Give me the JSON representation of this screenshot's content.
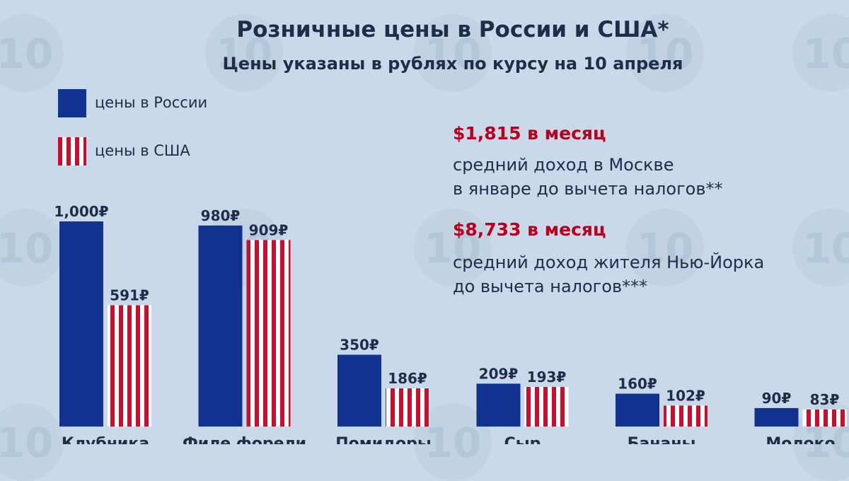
{
  "header": {
    "title": "Розничные цены в России и США*",
    "subtitle": "Цены указаны в рублях по курсу на 10 апреля"
  },
  "legend": {
    "russia": "цены в России",
    "usa": "цены в США"
  },
  "info": {
    "moscow_amount": "$1,815 в месяц",
    "moscow_line1": "средний доход в Москве",
    "moscow_line2": "в январе до вычета налогов**",
    "ny_amount": "$8,733 в месяц",
    "ny_line1": "средний доход жителя Нью-Йорка",
    "ny_line2": "до вычета налогов***"
  },
  "colors": {
    "background": "#c9d9e9",
    "russia": "#11338f",
    "usa_stripe": "#c8102e",
    "text": "#1f2c4a",
    "accent": "#b8001e"
  },
  "chart_data": {
    "type": "bar",
    "title": "Розничные цены в России и США*",
    "subtitle": "Цены указаны в рублях по курсу на 10 апреля",
    "categories": [
      "Клубника",
      "Филе форели",
      "Помидоры",
      "Сыр",
      "Бананы",
      "Молоко"
    ],
    "series": [
      {
        "name": "цены в России",
        "values": [
          1000,
          980,
          350,
          209,
          160,
          90
        ],
        "labels": [
          "1,000₽",
          "980₽",
          "350₽",
          "209₽",
          "160₽",
          "90₽"
        ]
      },
      {
        "name": "цены в США",
        "values": [
          591,
          909,
          186,
          193,
          102,
          83
        ],
        "labels": [
          "591₽",
          "909₽",
          "186₽",
          "193₽",
          "102₽",
          "83₽"
        ]
      }
    ],
    "unit": "₽",
    "legend": "top-left",
    "grid": false
  }
}
